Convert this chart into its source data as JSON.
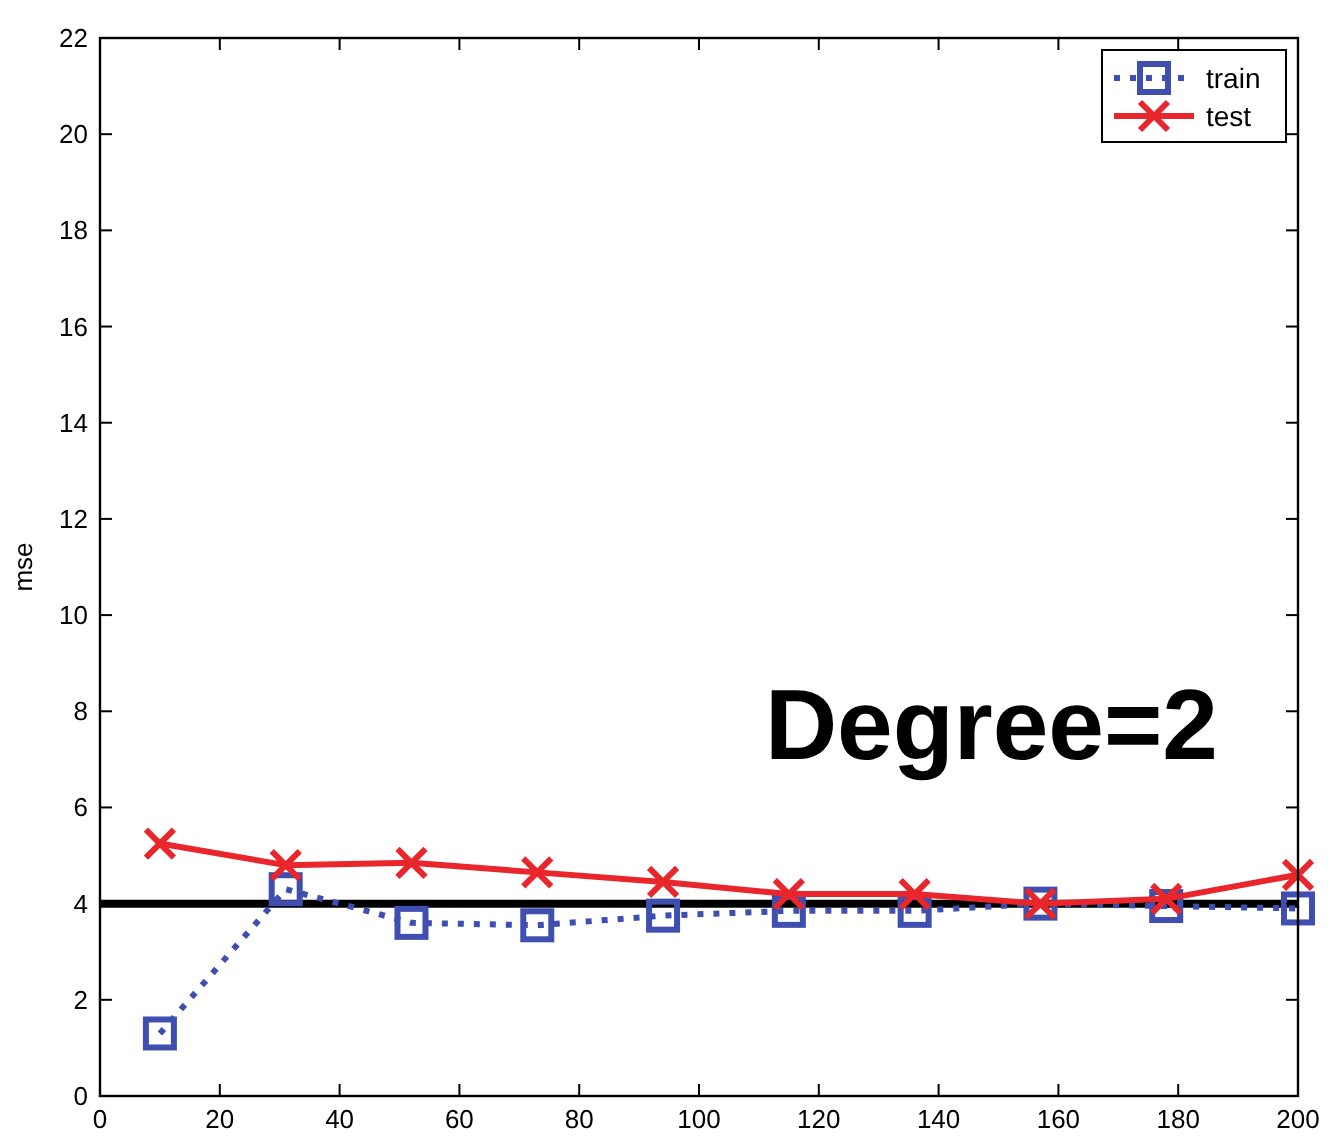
{
  "chart_data": {
    "type": "line",
    "ylabel": "mse",
    "x": [
      10,
      31,
      52,
      73,
      94,
      115,
      136,
      157,
      178,
      200
    ],
    "series": [
      {
        "name": "train",
        "color": "#3f4fb0",
        "marker": "square",
        "line_style": "dotted",
        "values": [
          1.3,
          4.3,
          3.6,
          3.55,
          3.75,
          3.85,
          3.85,
          4.0,
          3.95,
          3.9
        ]
      },
      {
        "name": "test",
        "color": "#e8262b",
        "marker": "cross",
        "line_style": "solid",
        "values": [
          5.25,
          4.8,
          4.85,
          4.65,
          4.45,
          4.2,
          4.2,
          4.0,
          4.1,
          4.6
        ]
      }
    ],
    "xlim": [
      0,
      200
    ],
    "xticks": [
      0,
      20,
      40,
      60,
      80,
      100,
      120,
      140,
      160,
      180,
      200
    ],
    "ylim": [
      0,
      22
    ],
    "yticks": [
      0,
      2,
      4,
      6,
      8,
      10,
      12,
      14,
      16,
      18,
      20,
      22
    ],
    "ref_lines": [
      {
        "axis": "y",
        "value": 4,
        "color": "#000000"
      }
    ],
    "annotations": [
      "Degree=2"
    ],
    "legend": "top right",
    "grid": false
  }
}
